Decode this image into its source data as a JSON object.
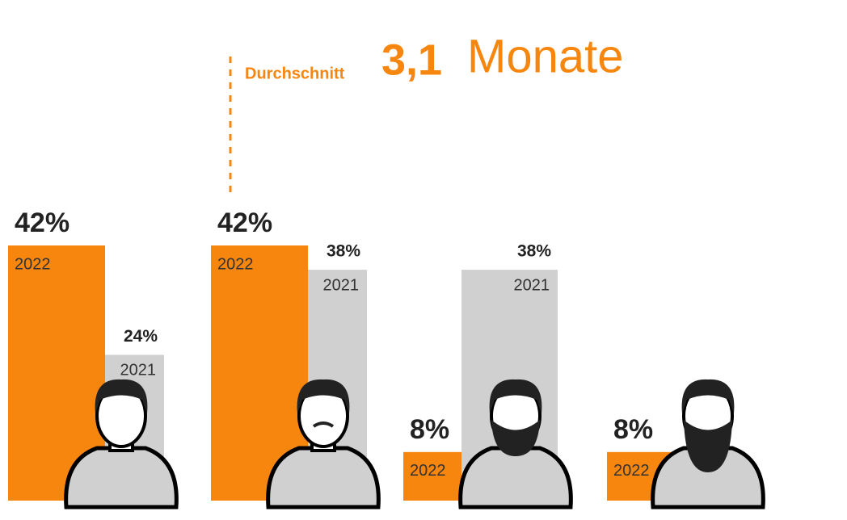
{
  "chart_data": {
    "type": "bar",
    "heading": {
      "label": "Durchschnitt",
      "value": "3,1",
      "unit": "Monate"
    },
    "categories": [
      null,
      null,
      null,
      null
    ],
    "series": [
      {
        "name": "2022",
        "color": "#f7860f",
        "values": [
          42,
          42,
          8,
          8
        ],
        "value_labels": [
          "42%",
          "42%",
          "8%",
          "8%"
        ]
      },
      {
        "name": "2021",
        "color": "#d0d0d0",
        "values": [
          24,
          38,
          38,
          null
        ],
        "value_labels": [
          "24%",
          "38%",
          "38%",
          null
        ]
      }
    ]
  }
}
